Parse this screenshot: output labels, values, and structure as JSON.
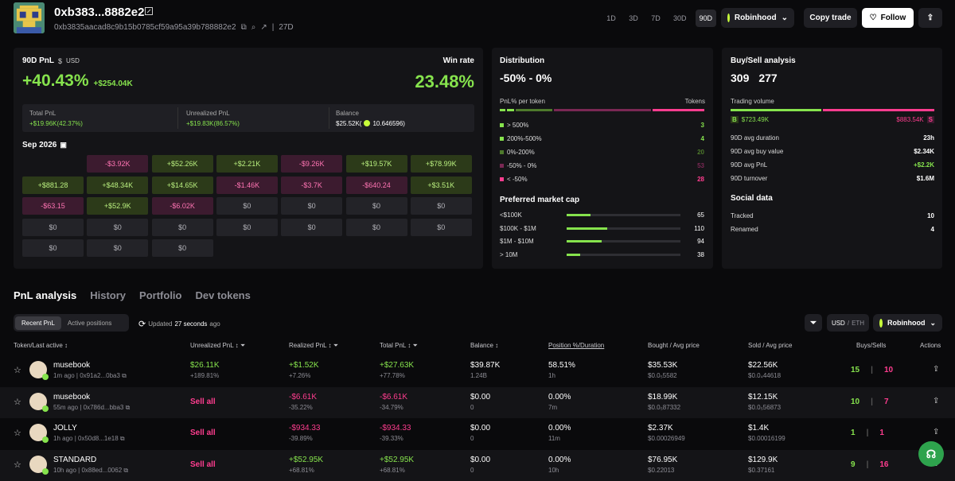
{
  "header": {
    "name": "0xb383...8882e2",
    "address": "0xb3835aacad8c9b15b0785cf59a95a39b788882e2",
    "age": "27D",
    "timeframes": [
      "1D",
      "3D",
      "7D",
      "30D",
      "90D"
    ],
    "active_tf": "90D",
    "platform": "Robinhood",
    "copy_trade": "Copy trade",
    "follow": "Follow"
  },
  "pnl": {
    "label": "90D PnL",
    "unit": "USD",
    "pct": "+40.43%",
    "usd": "+$254.04K",
    "winrate_label": "Win rate",
    "winrate": "23.48%",
    "total_label": "Total PnL",
    "total": "+$19.96K(42.37%)",
    "unreal_label": "Unrealized PnL",
    "unreal": "+$19.83K(86.57%)",
    "balance_label": "Balance",
    "balance": "$25.52K(",
    "balance_eth": "10.646596)"
  },
  "calendar": {
    "month": "Sep 2026",
    "cells": [
      [
        "",
        "-$3.92K",
        "+$52.26K",
        "+$2.21K",
        "-$9.26K",
        "+$19.57K",
        "+$78.99K"
      ],
      [
        "+$881.28",
        "+$48.34K",
        "+$14.65K",
        "-$1.46K",
        "-$3.7K",
        "-$640.24",
        "+$3.51K"
      ],
      [
        "-$63.15",
        "+$52.9K",
        "-$6.02K",
        "$0",
        "$0",
        "$0",
        "$0"
      ],
      [
        "$0",
        "$0",
        "$0",
        "$0",
        "$0",
        "$0",
        "$0"
      ],
      [
        "$0",
        "$0",
        "$0",
        "",
        "",
        "",
        ""
      ]
    ]
  },
  "distribution": {
    "title": "Distribution",
    "range": "-50% - 0%",
    "col1": "PnL% per token",
    "col2": "Tokens",
    "rows": [
      {
        "label": "> 500%",
        "value": "3",
        "color": "#86e34d"
      },
      {
        "label": "200%-500%",
        "value": "4",
        "color": "#86e34d"
      },
      {
        "label": "0%-200%",
        "value": "20",
        "color": "#4e7a2c"
      },
      {
        "label": "-50% - 0%",
        "value": "53",
        "color": "#7a2854"
      },
      {
        "label": "< -50%",
        "value": "28",
        "color": "#ff3d8f"
      }
    ],
    "mc_title": "Preferred market cap",
    "mc": [
      {
        "label": "<$100K",
        "value": "65",
        "frac": 0.21
      },
      {
        "label": "$100K - $1M",
        "value": "110",
        "frac": 0.36
      },
      {
        "label": "$1M - $10M",
        "value": "94",
        "frac": 0.31
      },
      {
        "label": "> 10M",
        "value": "38",
        "frac": 0.12
      }
    ]
  },
  "buysell": {
    "title": "Buy/Sell analysis",
    "buys": "309",
    "sells": "277",
    "vol_label": "Trading volume",
    "buy_vol": "$723.49K",
    "sell_vol": "$883.54K",
    "stats": [
      {
        "label": "90D avg duration",
        "value": "23h"
      },
      {
        "label": "90D avg buy value",
        "value": "$2.34K"
      },
      {
        "label": "90D avg PnL",
        "value": "+$2.2K"
      },
      {
        "label": "90D turnover",
        "value": "$1.6M"
      }
    ],
    "social_title": "Social data",
    "social": [
      {
        "label": "Tracked",
        "value": "10"
      },
      {
        "label": "Renamed",
        "value": "4"
      }
    ]
  },
  "tabs": [
    "PnL analysis",
    "History",
    "Portfolio",
    "Dev tokens"
  ],
  "subtabs": [
    "Recent PnL",
    "Active positions"
  ],
  "updated": "Updated",
  "updated_time": "27 seconds",
  "updated_ago": "ago",
  "currency": "USD",
  "currency2": "ETH",
  "columns": [
    "Token/Last active",
    "Unrealized PnL",
    "Realized PnL",
    "Total PnL",
    "Balance",
    "Position %/Duration",
    "Bought / Avg price",
    "Sold / Avg price",
    "Buys/Sells",
    "Actions"
  ],
  "rows": [
    {
      "token": "musebook",
      "meta": "1m ago | 0x91a2...0ba3",
      "unreal": "$26.11K",
      "unreal_sub": "+189.81%",
      "realized": "+$1.52K",
      "realized_sub": "+7.26%",
      "total": "+$27.63K",
      "total_sub": "+77.78%",
      "balance": "$39.87K",
      "balance_sub": "1.24B",
      "pos": "58.51%",
      "dur": "1h",
      "bought": "$35.53K",
      "bought_avg": "$0.0₅5582",
      "sold": "$22.56K",
      "sold_avg": "$0.0₄44618",
      "buys": "15",
      "sells": "10"
    },
    {
      "token": "musebook",
      "meta": "55m ago | 0x786d...bba3",
      "unreal": "Sell all",
      "unreal_sub": "",
      "realized": "-$6.61K",
      "realized_sub": "-35.22%",
      "total": "-$6.61K",
      "total_sub": "-34.79%",
      "balance": "$0.00",
      "balance_sub": "0",
      "pos": "0.00%",
      "dur": "7m",
      "bought": "$18.99K",
      "bought_avg": "$0.0₅87332",
      "sold": "$12.15K",
      "sold_avg": "$0.0₅56873",
      "buys": "10",
      "sells": "7"
    },
    {
      "token": "JOLLY",
      "meta": "1h ago | 0x50d8...1e18",
      "unreal": "Sell all",
      "unreal_sub": "",
      "realized": "-$934.33",
      "realized_sub": "-39.89%",
      "total": "-$934.33",
      "total_sub": "-39.33%",
      "balance": "$0.00",
      "balance_sub": "0",
      "pos": "0.00%",
      "dur": "11m",
      "bought": "$2.37K",
      "bought_avg": "$0.00026949",
      "sold": "$1.4K",
      "sold_avg": "$0.00016199",
      "buys": "1",
      "sells": "1"
    },
    {
      "token": "STANDARD",
      "meta": "10h ago | 0x88ed...0062",
      "unreal": "Sell all",
      "unreal_sub": "",
      "realized": "+$52.95K",
      "realized_sub": "+68.81%",
      "total": "+$52.95K",
      "total_sub": "+68.81%",
      "balance": "$0.00",
      "balance_sub": "0",
      "pos": "0.00%",
      "dur": "10h",
      "bought": "$76.95K",
      "bought_avg": "$0.22013",
      "sold": "$129.9K",
      "sold_avg": "$0.37161",
      "buys": "9",
      "sells": "16"
    }
  ]
}
